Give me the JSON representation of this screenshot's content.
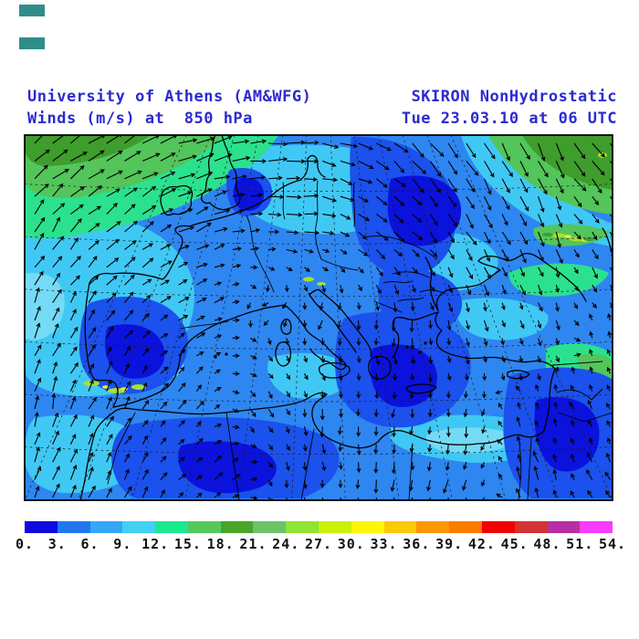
{
  "header": {
    "left_line1": "University of Athens (AM&WFG)",
    "left_line2": "Winds (m/s) at  850 hPa",
    "right_line1": "SKIRON NonHydrostatic",
    "right_line2": "Tue 23.03.10 at 06 UTC",
    "text_color": "#2b2bd0"
  },
  "decor": {
    "square_color": "#2f8e8a"
  },
  "chart_data": {
    "type": "heatmap",
    "title": "Winds (m/s) at 850 hPa",
    "model": "SKIRON NonHydrostatic",
    "valid_time": "Tue 23.03.10 at 06 UTC",
    "units": "m/s",
    "colorbar": {
      "min": 0,
      "max": 54,
      "step": 3,
      "tick_labels": [
        "0.",
        "3.",
        "6.",
        "9.",
        "12.",
        "15.",
        "18.",
        "21.",
        "24.",
        "27.",
        "30.",
        "33.",
        "36.",
        "39.",
        "42.",
        "45.",
        "48.",
        "51.",
        "54."
      ],
      "segment_colors": [
        "#0a0ae1",
        "#2277f0",
        "#36a6f8",
        "#41d1f4",
        "#1ce88e",
        "#55c85c",
        "#48a42b",
        "#6ac36a",
        "#8fe532",
        "#cdf000",
        "#fdf800",
        "#fcc800",
        "#fc9800",
        "#fb7d00",
        "#f20000",
        "#d03434",
        "#b72fa3",
        "#fb3afb"
      ]
    }
  }
}
